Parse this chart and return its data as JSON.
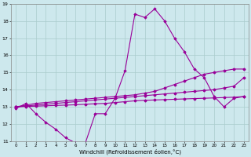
{
  "xlabel": "Windchill (Refroidissement éolien,°C)",
  "x": [
    0,
    1,
    2,
    3,
    4,
    5,
    6,
    7,
    8,
    9,
    10,
    11,
    12,
    13,
    14,
    15,
    16,
    17,
    18,
    19,
    20,
    21,
    22,
    23
  ],
  "y_main": [
    12.9,
    13.2,
    12.6,
    12.1,
    11.7,
    11.2,
    10.9,
    10.9,
    12.6,
    12.6,
    13.5,
    15.1,
    18.4,
    18.2,
    18.7,
    18.0,
    17.0,
    16.2,
    15.2,
    14.7,
    13.6,
    13.0,
    13.5,
    13.6
  ],
  "y_trend1": [
    13.0,
    13.1,
    13.2,
    13.25,
    13.3,
    13.35,
    13.4,
    13.45,
    13.5,
    13.55,
    13.6,
    13.65,
    13.7,
    13.8,
    13.9,
    14.1,
    14.3,
    14.5,
    14.7,
    14.9,
    15.0,
    15.1,
    15.2,
    15.2
  ],
  "y_trend2": [
    13.0,
    13.05,
    13.1,
    13.15,
    13.2,
    13.25,
    13.3,
    13.35,
    13.4,
    13.45,
    13.5,
    13.55,
    13.6,
    13.65,
    13.7,
    13.75,
    13.8,
    13.85,
    13.9,
    13.95,
    14.0,
    14.1,
    14.2,
    14.7
  ],
  "y_trend3": [
    13.0,
    13.02,
    13.04,
    13.06,
    13.08,
    13.1,
    13.12,
    13.15,
    13.18,
    13.2,
    13.25,
    13.3,
    13.35,
    13.38,
    13.4,
    13.42,
    13.44,
    13.46,
    13.48,
    13.5,
    13.52,
    13.54,
    13.56,
    13.6
  ],
  "color": "#990099",
  "bg_color": "#cde8ed",
  "grid_color": "#aacccc",
  "ylim": [
    11,
    19
  ],
  "xlim": [
    -0.5,
    23.5
  ]
}
